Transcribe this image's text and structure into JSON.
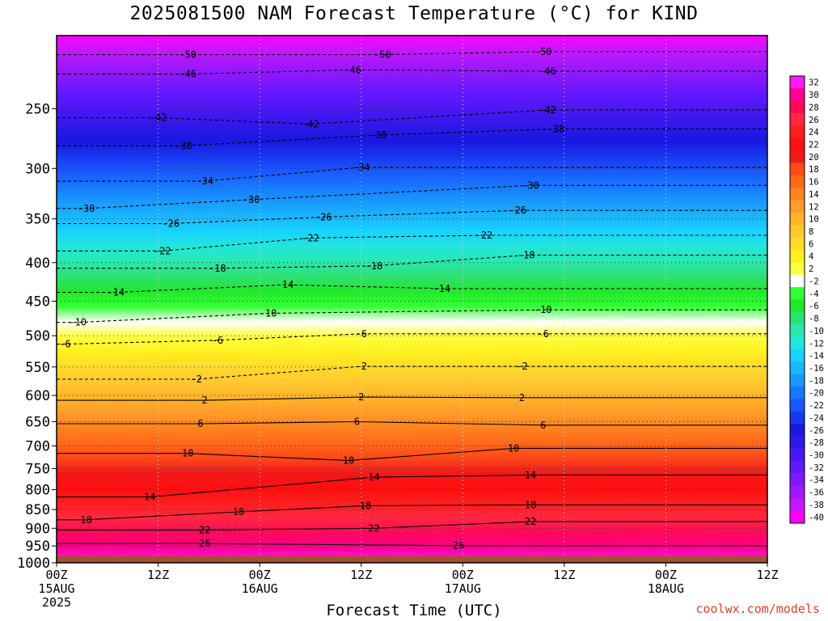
{
  "page": {
    "title": "2025081500 NAM Forecast Temperature (°C) for KIND",
    "credit": "coolwx.com/models"
  },
  "chart_data": {
    "type": "heatmap",
    "title": "2025081500 NAM Forecast Temperature (°C) for KIND",
    "xlabel": "Forecast Time (UTC)",
    "ylabel": "",
    "x_unit": "hours",
    "xlim": [
      0,
      84
    ],
    "y_scale": "log-pressure",
    "ylim": [
      1000,
      200
    ],
    "ground_level_hPa": 980,
    "x_ticks": [
      {
        "h": 0,
        "line1": "00Z",
        "line2": "15AUG",
        "line3": "2025"
      },
      {
        "h": 12,
        "line1": "12Z",
        "line2": "",
        "line3": ""
      },
      {
        "h": 24,
        "line1": "00Z",
        "line2": "16AUG",
        "line3": ""
      },
      {
        "h": 36,
        "line1": "12Z",
        "line2": "",
        "line3": ""
      },
      {
        "h": 48,
        "line1": "00Z",
        "line2": "17AUG",
        "line3": ""
      },
      {
        "h": 60,
        "line1": "12Z",
        "line2": "",
        "line3": ""
      },
      {
        "h": 72,
        "line1": "00Z",
        "line2": "18AUG",
        "line3": ""
      },
      {
        "h": 84,
        "line1": "12Z",
        "line2": "",
        "line3": ""
      }
    ],
    "y_ticks": [
      250,
      300,
      350,
      400,
      450,
      500,
      550,
      600,
      650,
      700,
      750,
      800,
      850,
      900,
      950,
      1000
    ],
    "grid": true,
    "colorbar": {
      "levels": [
        32,
        30,
        28,
        26,
        24,
        22,
        20,
        18,
        16,
        14,
        12,
        10,
        8,
        6,
        4,
        2,
        -2,
        -4,
        -6,
        -8,
        -10,
        -12,
        -14,
        -16,
        -18,
        -20,
        -22,
        -24,
        -26,
        -28,
        -30,
        -32,
        -34,
        -36,
        -38,
        -40
      ],
      "colors": [
        "#ff1aff",
        "#ff0090",
        "#ff0a5a",
        "#ff2840",
        "#ff1e1e",
        "#ff0f0f",
        "#f01a1a",
        "#ff4a1a",
        "#ff6a1a",
        "#ff8420",
        "#ff9d2a",
        "#ffb42a",
        "#ffc830",
        "#ffdb2a",
        "#fff01e",
        "#ffff40",
        "#ffffff",
        "#34ff34",
        "#22e82a",
        "#2ee072",
        "#28e8b0",
        "#22e6dc",
        "#18d2ff",
        "#1ab6ff",
        "#1898ff",
        "#1878ff",
        "#1a58ff",
        "#1838f0",
        "#1818e0",
        "#3018e8",
        "#4818f4",
        "#6018ff",
        "#8018ff",
        "#a018ff",
        "#c418ff",
        "#ff00ff"
      ]
    },
    "contour_labels": [
      {
        "h": 15.5,
        "p": 212,
        "label": "-50"
      },
      {
        "h": 38.5,
        "p": 212,
        "label": "-50"
      },
      {
        "h": 57.5,
        "p": 210,
        "label": "-50"
      },
      {
        "h": 15.5,
        "p": 225,
        "label": "-46"
      },
      {
        "h": 35,
        "p": 222,
        "label": "-46"
      },
      {
        "h": 58,
        "p": 223,
        "label": "-46"
      },
      {
        "h": 12,
        "p": 257,
        "label": "-42"
      },
      {
        "h": 30,
        "p": 262,
        "label": "-42"
      },
      {
        "h": 58,
        "p": 251,
        "label": "-42"
      },
      {
        "h": 15,
        "p": 280,
        "label": "-38"
      },
      {
        "h": 38,
        "p": 271,
        "label": "-38"
      },
      {
        "h": 59,
        "p": 266,
        "label": "-38"
      },
      {
        "h": 17.5,
        "p": 312,
        "label": "-34"
      },
      {
        "h": 36,
        "p": 299,
        "label": "-34"
      },
      {
        "h": 3.5,
        "p": 339,
        "label": "-30"
      },
      {
        "h": 23,
        "p": 330,
        "label": "-30"
      },
      {
        "h": 56,
        "p": 316,
        "label": "-30"
      },
      {
        "h": 13.5,
        "p": 355,
        "label": "-26"
      },
      {
        "h": 31.5,
        "p": 348,
        "label": "-26"
      },
      {
        "h": 54.5,
        "p": 341,
        "label": "-26"
      },
      {
        "h": 12.5,
        "p": 386,
        "label": "-22"
      },
      {
        "h": 30,
        "p": 371,
        "label": "-22"
      },
      {
        "h": 50.5,
        "p": 368,
        "label": "-22"
      },
      {
        "h": 19,
        "p": 407,
        "label": "-18"
      },
      {
        "h": 37.5,
        "p": 404,
        "label": "-18"
      },
      {
        "h": 55.5,
        "p": 391,
        "label": "-18"
      },
      {
        "h": 7,
        "p": 438,
        "label": "-14"
      },
      {
        "h": 27,
        "p": 428,
        "label": "-14"
      },
      {
        "h": 45.5,
        "p": 433,
        "label": "-14"
      },
      {
        "h": 2.5,
        "p": 480,
        "label": "-10"
      },
      {
        "h": 25,
        "p": 467,
        "label": "-10"
      },
      {
        "h": 57.5,
        "p": 462,
        "label": "-10"
      },
      {
        "h": 1,
        "p": 513,
        "label": "-6"
      },
      {
        "h": 19,
        "p": 507,
        "label": "-6"
      },
      {
        "h": 36,
        "p": 497,
        "label": "-6"
      },
      {
        "h": 57.5,
        "p": 497,
        "label": "-6"
      },
      {
        "h": 16.5,
        "p": 571,
        "label": "-2"
      },
      {
        "h": 36,
        "p": 549,
        "label": "-2"
      },
      {
        "h": 55,
        "p": 549,
        "label": "-2"
      },
      {
        "h": 17.5,
        "p": 609,
        "label": "2"
      },
      {
        "h": 36,
        "p": 603,
        "label": "2"
      },
      {
        "h": 55,
        "p": 604,
        "label": "2"
      },
      {
        "h": 17,
        "p": 654,
        "label": "6"
      },
      {
        "h": 35.5,
        "p": 650,
        "label": "6"
      },
      {
        "h": 57.5,
        "p": 657,
        "label": "6"
      },
      {
        "h": 15.5,
        "p": 716,
        "label": "10"
      },
      {
        "h": 34.5,
        "p": 732,
        "label": "10"
      },
      {
        "h": 54,
        "p": 705,
        "label": "10"
      },
      {
        "h": 11,
        "p": 818,
        "label": "14"
      },
      {
        "h": 37.5,
        "p": 770,
        "label": "14"
      },
      {
        "h": 56,
        "p": 765,
        "label": "14"
      },
      {
        "h": 3.5,
        "p": 877,
        "label": "18"
      },
      {
        "h": 21.5,
        "p": 856,
        "label": "18"
      },
      {
        "h": 36.5,
        "p": 840,
        "label": "18"
      },
      {
        "h": 56,
        "p": 838,
        "label": "18"
      },
      {
        "h": 17.5,
        "p": 905,
        "label": "22"
      },
      {
        "h": 37.5,
        "p": 900,
        "label": "22"
      },
      {
        "h": 56,
        "p": 882,
        "label": "22"
      },
      {
        "h": 17.5,
        "p": 943,
        "label": "26"
      },
      {
        "h": 47.5,
        "p": 949,
        "label": "26"
      }
    ]
  }
}
